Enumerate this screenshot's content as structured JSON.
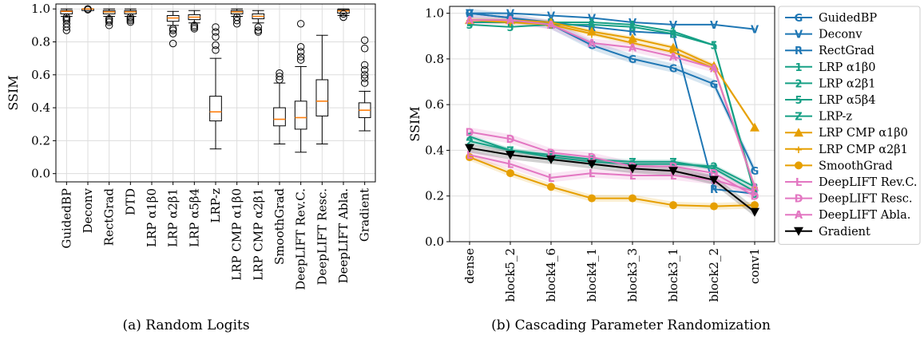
{
  "chart_data": [
    {
      "type": "box",
      "caption": "(a) Random Logits",
      "ylabel": "SSIM",
      "ylim": [
        -0.05,
        1.03
      ],
      "yticks": [
        0.0,
        0.2,
        0.4,
        0.6,
        0.8,
        1.0
      ],
      "grid": true,
      "categories": [
        "GuidedBP",
        "Deconv",
        "RectGrad",
        "DTD",
        "LRP α1β0",
        "LRP α2β1",
        "LRP α5β4",
        "LRP-z",
        "LRP CMP α1β0",
        "LRP CMP α2β1",
        "SmoothGrad",
        "DeepLIFT Rev.C.",
        "DeepLIFT Resc.",
        "DeepLIFT Abla.",
        "Gradient"
      ],
      "boxes": [
        {
          "q1": 0.97,
          "median": 0.985,
          "q3": 0.99,
          "whislo": 0.955,
          "whishi": 1.0,
          "fliers": [
            0.93,
            0.91,
            0.89,
            0.87,
            0.95,
            0.94
          ]
        },
        {
          "q1": 0.998,
          "median": 1.0,
          "q3": 1.0,
          "whislo": 0.995,
          "whishi": 1.0,
          "fliers": [
            1.0,
            0.995
          ]
        },
        {
          "q1": 0.97,
          "median": 0.982,
          "q3": 0.99,
          "whislo": 0.955,
          "whishi": 1.0,
          "fliers": [
            0.94,
            0.92,
            0.9,
            0.93
          ]
        },
        {
          "q1": 0.97,
          "median": 0.982,
          "q3": 0.99,
          "whislo": 0.955,
          "whishi": 1.0,
          "fliers": [
            0.94,
            0.93,
            0.92,
            0.95
          ]
        },
        null,
        {
          "q1": 0.925,
          "median": 0.945,
          "q3": 0.96,
          "whislo": 0.9,
          "whishi": 0.985,
          "fliers": [
            0.87,
            0.85,
            0.79,
            0.88
          ]
        },
        {
          "q1": 0.935,
          "median": 0.95,
          "q3": 0.965,
          "whislo": 0.915,
          "whishi": 0.99,
          "fliers": [
            0.9,
            0.88,
            0.89
          ]
        },
        {
          "q1": 0.32,
          "median": 0.375,
          "q3": 0.47,
          "whislo": 0.15,
          "whishi": 0.7,
          "fliers": [
            0.75,
            0.78,
            0.83,
            0.86,
            0.89
          ]
        },
        {
          "q1": 0.97,
          "median": 0.982,
          "q3": 0.99,
          "whislo": 0.955,
          "whishi": 1.0,
          "fliers": [
            0.93,
            0.91,
            0.95
          ]
        },
        {
          "q1": 0.94,
          "median": 0.955,
          "q3": 0.97,
          "whislo": 0.915,
          "whishi": 0.99,
          "fliers": [
            0.89,
            0.87,
            0.86
          ]
        },
        {
          "q1": 0.29,
          "median": 0.33,
          "q3": 0.4,
          "whislo": 0.18,
          "whishi": 0.55,
          "fliers": [
            0.57,
            0.59,
            0.61
          ]
        },
        {
          "q1": 0.27,
          "median": 0.34,
          "q3": 0.44,
          "whislo": 0.13,
          "whishi": 0.65,
          "fliers": [
            0.69,
            0.71,
            0.74,
            0.77,
            0.91
          ]
        },
        {
          "q1": 0.35,
          "median": 0.44,
          "q3": 0.57,
          "whislo": 0.18,
          "whishi": 0.84,
          "fliers": []
        },
        {
          "q1": 0.975,
          "median": 0.988,
          "q3": 0.995,
          "whislo": 0.96,
          "whishi": 1.0,
          "fliers": [
            0.95,
            0.97
          ]
        },
        {
          "q1": 0.34,
          "median": 0.385,
          "q3": 0.43,
          "whislo": 0.26,
          "whishi": 0.5,
          "fliers": [
            0.55,
            0.58,
            0.6,
            0.63,
            0.66,
            0.76,
            0.81
          ]
        }
      ]
    },
    {
      "type": "line",
      "caption": "(b) Cascading Parameter Randomization",
      "ylabel": "SSIM",
      "ylim": [
        0.0,
        1.03
      ],
      "yticks": [
        0.0,
        0.2,
        0.4,
        0.6,
        0.8,
        1.0
      ],
      "grid": true,
      "legend_position": "right",
      "x": [
        "dense",
        "block5_2",
        "block4_6",
        "block4_1",
        "block3_3",
        "block3_1",
        "block2_2",
        "conv1"
      ],
      "series": [
        {
          "name": "GuidedBP",
          "marker": "G",
          "color": "#1f77b4",
          "values": [
            1.0,
            0.98,
            0.95,
            0.86,
            0.8,
            0.76,
            0.69,
            0.31
          ],
          "band": 0.02
        },
        {
          "name": "Deconv",
          "marker": "V",
          "color": "#1f77b4",
          "values": [
            1.0,
            1.0,
            0.99,
            0.98,
            0.96,
            0.95,
            0.95,
            0.93
          ],
          "band": 0
        },
        {
          "name": "RectGrad",
          "marker": "R",
          "color": "#1f77b4",
          "values": [
            1.0,
            0.98,
            0.96,
            0.94,
            0.92,
            0.91,
            0.23,
            0.21
          ],
          "band": 0
        },
        {
          "name": "LRP α1β0",
          "marker": "1",
          "color": "#16a085",
          "values": [
            0.96,
            0.96,
            0.96,
            0.96,
            0.95,
            0.92,
            0.86,
            0.22
          ],
          "band": 0
        },
        {
          "name": "LRP α2β1",
          "marker": "2",
          "color": "#16a085",
          "values": [
            0.44,
            0.4,
            0.37,
            0.35,
            0.34,
            0.34,
            0.33,
            0.24
          ],
          "band": 0.01
        },
        {
          "name": "LRP α5β4",
          "marker": "5",
          "color": "#16a085",
          "values": [
            0.95,
            0.94,
            0.95,
            0.95,
            0.94,
            0.91,
            0.86,
            0.21
          ],
          "band": 0
        },
        {
          "name": "LRP-z",
          "marker": "Z",
          "color": "#16a085",
          "values": [
            0.46,
            0.4,
            0.38,
            0.36,
            0.35,
            0.35,
            0.32,
            0.22
          ],
          "band": 0.01
        },
        {
          "name": "LRP CMP α1β0",
          "marker": "▲",
          "color": "#e69f00",
          "values": [
            0.97,
            0.97,
            0.96,
            0.92,
            0.89,
            0.85,
            0.77,
            0.5
          ],
          "band": 0.01
        },
        {
          "name": "LRP CMP α2β1",
          "marker": "+",
          "color": "#e69f00",
          "values": [
            0.97,
            0.96,
            0.95,
            0.91,
            0.87,
            0.83,
            0.76,
            0.24
          ],
          "band": 0.01
        },
        {
          "name": "SmoothGrad",
          "marker": "●",
          "color": "#e69f00",
          "values": [
            0.37,
            0.3,
            0.24,
            0.19,
            0.19,
            0.16,
            0.155,
            0.16
          ],
          "band": 0.015
        },
        {
          "name": "DeepLIFT Rev.C.",
          "marker": "L",
          "color": "#e377c2",
          "values": [
            0.38,
            0.34,
            0.28,
            0.3,
            0.29,
            0.29,
            0.27,
            0.22
          ],
          "band": 0.02
        },
        {
          "name": "DeepLIFT Resc.",
          "marker": "D",
          "color": "#e377c2",
          "values": [
            0.48,
            0.45,
            0.39,
            0.37,
            0.33,
            0.33,
            0.3,
            0.2
          ],
          "band": 0.02
        },
        {
          "name": "DeepLIFT Abla.",
          "marker": "A",
          "color": "#e377c2",
          "values": [
            0.97,
            0.97,
            0.95,
            0.87,
            0.85,
            0.81,
            0.76,
            0.24
          ],
          "band": 0.02
        },
        {
          "name": "Gradient",
          "marker": "▼",
          "color": "#000000",
          "values": [
            0.41,
            0.38,
            0.36,
            0.34,
            0.32,
            0.31,
            0.27,
            0.13
          ],
          "band": 0.02
        }
      ]
    }
  ]
}
